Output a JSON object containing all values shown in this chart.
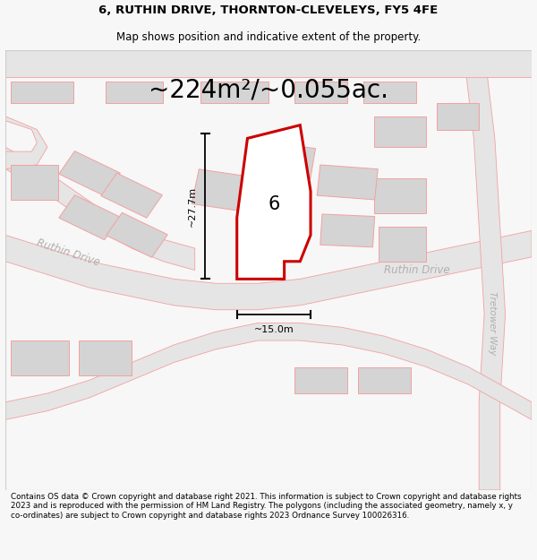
{
  "title": "6, RUTHIN DRIVE, THORNTON-CLEVELEYS, FY5 4FE",
  "subtitle": "Map shows position and indicative extent of the property.",
  "area_text": "~224m²/~0.055ac.",
  "dim_vertical": "~27.7m",
  "dim_horizontal": "~15.0m",
  "property_number": "6",
  "road_label_1": "Ruthin Drive",
  "road_label_2": "Ruthin Drive",
  "road_label_3": "Tretower Way",
  "footer": "Contains OS data © Crown copyright and database right 2021. This information is subject to Crown copyright and database rights 2023 and is reproduced with the permission of HM Land Registry. The polygons (including the associated geometry, namely x, y co-ordinates) are subject to Crown copyright and database rights 2023 Ordnance Survey 100026316.",
  "bg_color": "#f7f7f7",
  "map_bg": "#ffffff",
  "road_fill": "#e5e5e5",
  "road_stroke": "#f4a0a0",
  "property_fill": "#ffffff",
  "property_stroke": "#cc0000",
  "building_fill": "#d4d4d4",
  "building_stroke": "#f4a0a0"
}
